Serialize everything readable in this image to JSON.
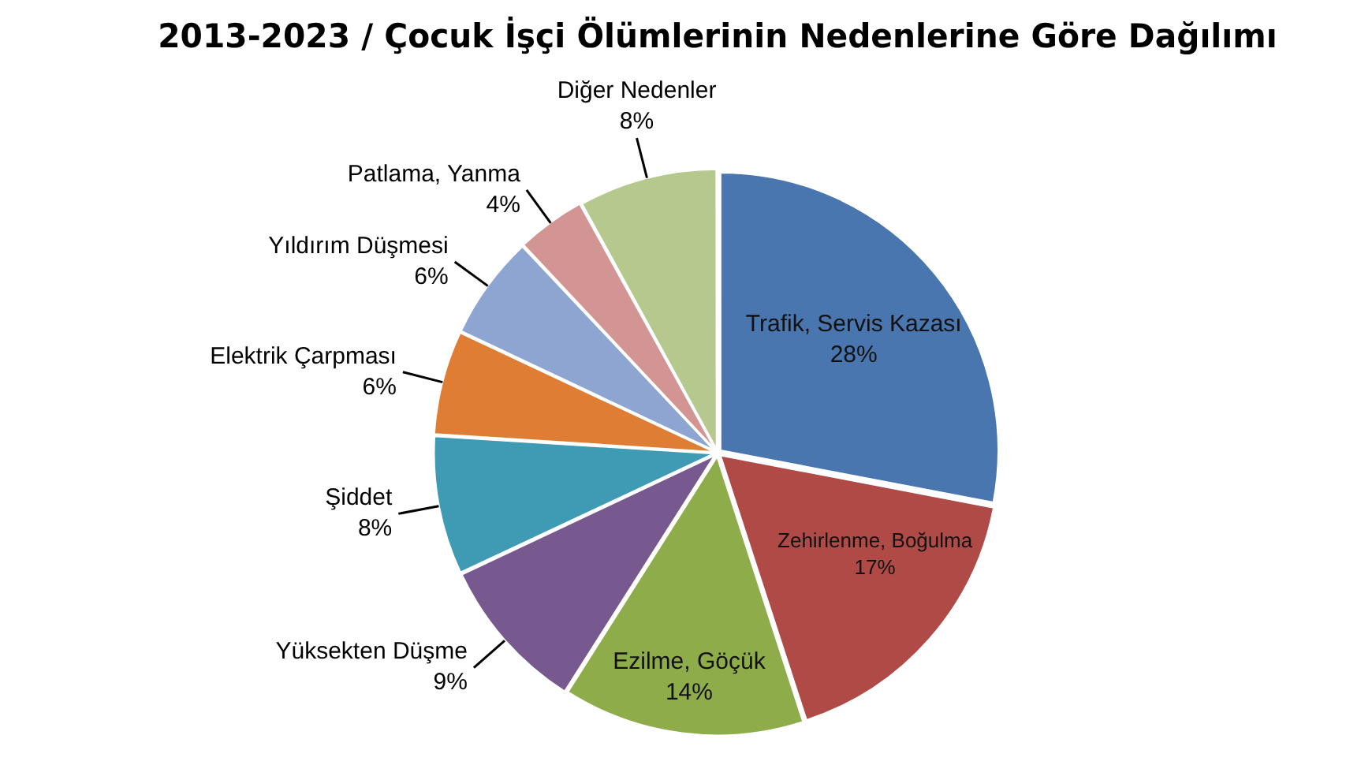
{
  "chart_data": {
    "type": "pie",
    "title": "2013-2023 / Çocuk İşçi Ölümlerinin Nedenlerine Göre Dağılımı",
    "categories": [
      "Trafik, Servis Kazası",
      "Zehirlenme, Boğulma",
      "Ezilme, Göçük",
      "Yüksekten Düşme",
      "Şiddet",
      "Elektrik Çarpması",
      "Yıldırım Düşmesi",
      "Patlama, Yanma",
      "Diğer Nedenler"
    ],
    "values": [
      28,
      17,
      14,
      9,
      8,
      6,
      6,
      4,
      8
    ],
    "value_labels": [
      "28%",
      "17%",
      "14%",
      "9%",
      "8%",
      "6%",
      "6%",
      "4%",
      "8%"
    ],
    "colors": [
      "#4a76b0",
      "#b04a47",
      "#8fac4b",
      "#77598f",
      "#3f9bb3",
      "#e07d35",
      "#8ea5d1",
      "#d39494",
      "#b5c98f"
    ]
  }
}
